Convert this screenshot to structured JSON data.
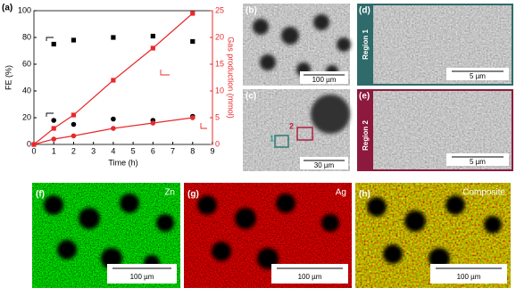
{
  "chart_data": {
    "type": "scatter",
    "panel_label": "(a)",
    "xlabel": "Time (h)",
    "ylabel": "FE (%)",
    "y2label": "Gas production (mmol)",
    "x": [
      0,
      1,
      2,
      4,
      6,
      8
    ],
    "xlim": [
      0,
      9
    ],
    "xticks": [
      0,
      1,
      2,
      3,
      4,
      5,
      6,
      7,
      8,
      9
    ],
    "ylim": [
      0,
      100
    ],
    "yticks": [
      0,
      20,
      40,
      60,
      80,
      100
    ],
    "y2lim": [
      0,
      25
    ],
    "y2ticks": [
      0,
      5,
      10,
      15,
      20,
      25
    ],
    "y2color": "#e8292b",
    "series": [
      {
        "color": "#000000",
        "marker": "square",
        "line": false,
        "values": [
          null,
          75,
          78,
          80,
          81,
          77
        ]
      },
      {
        "color": "#000000",
        "marker": "circle",
        "line": false,
        "values": [
          null,
          18,
          15,
          19,
          18,
          21
        ]
      },
      {
        "color": "#e8292b",
        "marker": "square",
        "line": true,
        "axis": "y2",
        "values": [
          0,
          3,
          5.5,
          12,
          18,
          24.5
        ]
      },
      {
        "color": "#e8292b",
        "marker": "circle",
        "line": true,
        "axis": "y2",
        "values": [
          0,
          1,
          1.6,
          3,
          4,
          5
        ]
      }
    ]
  },
  "panels": {
    "b": {
      "label": "(b)",
      "scale_bar": "100 µm"
    },
    "c": {
      "label": "(c)",
      "scale_bar": "30 µm",
      "marker1": "1",
      "marker2": "2"
    },
    "d": {
      "label": "(d)",
      "region": "Region 1",
      "scale_bar": "5 µm"
    },
    "e": {
      "label": "(e)",
      "region": "Region 2",
      "scale_bar": "5 µm"
    },
    "f": {
      "label": "(f)",
      "element": "Zn",
      "scale_bar": "100 µm"
    },
    "g": {
      "label": "(g)",
      "element": "Ag",
      "scale_bar": "100 µm"
    },
    "h": {
      "label": "(h)",
      "element": "Composite",
      "scale_bar": "100 µm"
    }
  }
}
